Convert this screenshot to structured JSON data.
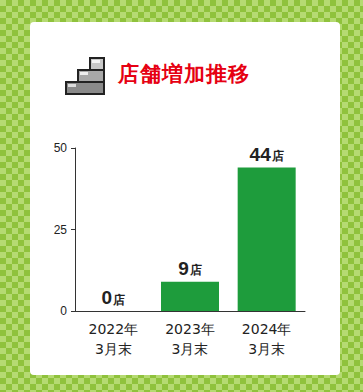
{
  "chart_data": {
    "type": "bar",
    "title": "店舗増加推移",
    "categories": [
      "2022年\n3月末",
      "2023年\n3月末",
      "2024年\n3月末"
    ],
    "values": [
      0,
      9,
      44
    ],
    "value_labels": [
      "0店",
      "9店",
      "44店"
    ],
    "color": "#1e9c3c",
    "ylim": [
      0,
      50
    ],
    "yticks": [
      0,
      25,
      50
    ],
    "grid": false,
    "data_labels": true
  }
}
